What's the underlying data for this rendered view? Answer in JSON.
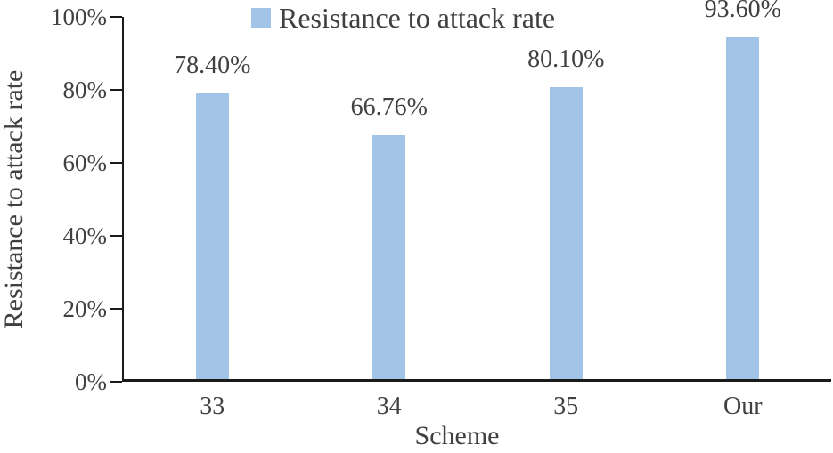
{
  "chart_data": {
    "type": "bar",
    "title": "",
    "categories": [
      "33",
      "34",
      "35",
      "Our"
    ],
    "values": [
      78.4,
      66.76,
      80.1,
      93.6
    ],
    "value_labels": [
      "78.40%",
      "66.76%",
      "80.10%",
      "93.60%"
    ],
    "xlabel": "Scheme",
    "ylabel": "Resistance to attack rate",
    "ylim": [
      0,
      100
    ],
    "yticks": [
      0,
      20,
      40,
      60,
      80,
      100
    ],
    "ytick_labels": [
      "0%",
      "20%",
      "40%",
      "60%",
      "80%",
      "100%"
    ],
    "grid": false,
    "legend": {
      "position": "top",
      "entries": [
        {
          "label": "Resistance to attack rate",
          "swatch_color": "#a2c4e6"
        }
      ]
    }
  },
  "colors": {
    "bar": "#a2c4e6",
    "text": "#404040",
    "axis": "#1a1a1a",
    "background": "#ffffff"
  }
}
